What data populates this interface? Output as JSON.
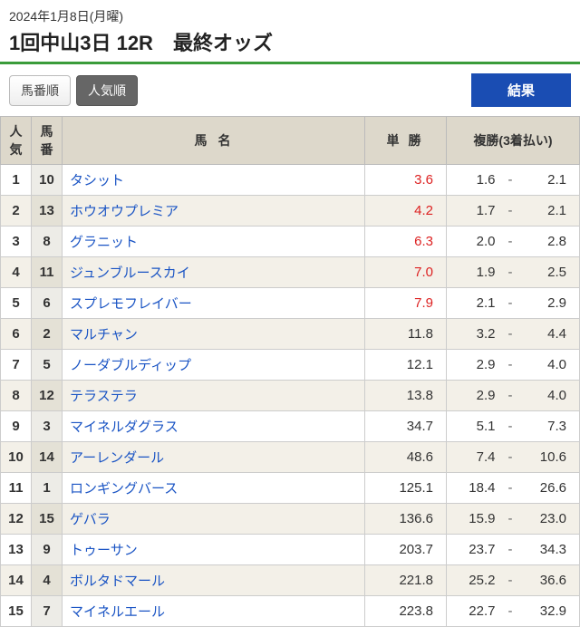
{
  "header": {
    "date": "2024年1月8日(月曜)",
    "title": "1回中山3日 12R　最終オッズ"
  },
  "controls": {
    "tab1": "馬番順",
    "tab2": "人気順",
    "result": "結果"
  },
  "columns": {
    "rank": "人気",
    "num": "馬番",
    "name": "馬名",
    "win": "単勝",
    "place": "複勝(3着払い)"
  },
  "dash": "-",
  "rows": [
    {
      "rank": "1",
      "num": "10",
      "name": "タシット",
      "win": "3.6",
      "win_red": true,
      "pl": "1.6",
      "ph": "2.1"
    },
    {
      "rank": "2",
      "num": "13",
      "name": "ホウオウプレミア",
      "win": "4.2",
      "win_red": true,
      "pl": "1.7",
      "ph": "2.1"
    },
    {
      "rank": "3",
      "num": "8",
      "name": "グラニット",
      "win": "6.3",
      "win_red": true,
      "pl": "2.0",
      "ph": "2.8"
    },
    {
      "rank": "4",
      "num": "11",
      "name": "ジュンブルースカイ",
      "win": "7.0",
      "win_red": true,
      "pl": "1.9",
      "ph": "2.5"
    },
    {
      "rank": "5",
      "num": "6",
      "name": "スプレモフレイバー",
      "win": "7.9",
      "win_red": true,
      "pl": "2.1",
      "ph": "2.9"
    },
    {
      "rank": "6",
      "num": "2",
      "name": "マルチャン",
      "win": "11.8",
      "win_red": false,
      "pl": "3.2",
      "ph": "4.4"
    },
    {
      "rank": "7",
      "num": "5",
      "name": "ノーダブルディップ",
      "win": "12.1",
      "win_red": false,
      "pl": "2.9",
      "ph": "4.0"
    },
    {
      "rank": "8",
      "num": "12",
      "name": "テラステラ",
      "win": "13.8",
      "win_red": false,
      "pl": "2.9",
      "ph": "4.0"
    },
    {
      "rank": "9",
      "num": "3",
      "name": "マイネルダグラス",
      "win": "34.7",
      "win_red": false,
      "pl": "5.1",
      "ph": "7.3"
    },
    {
      "rank": "10",
      "num": "14",
      "name": "アーレンダール",
      "win": "48.6",
      "win_red": false,
      "pl": "7.4",
      "ph": "10.6"
    },
    {
      "rank": "11",
      "num": "1",
      "name": "ロンギングバース",
      "win": "125.1",
      "win_red": false,
      "pl": "18.4",
      "ph": "26.6"
    },
    {
      "rank": "12",
      "num": "15",
      "name": "ゲバラ",
      "win": "136.6",
      "win_red": false,
      "pl": "15.9",
      "ph": "23.0"
    },
    {
      "rank": "13",
      "num": "9",
      "name": "トゥーサン",
      "win": "203.7",
      "win_red": false,
      "pl": "23.7",
      "ph": "34.3"
    },
    {
      "rank": "14",
      "num": "4",
      "name": "ボルタドマール",
      "win": "221.8",
      "win_red": false,
      "pl": "25.2",
      "ph": "36.6"
    },
    {
      "rank": "15",
      "num": "7",
      "name": "マイネルエール",
      "win": "223.8",
      "win_red": false,
      "pl": "22.7",
      "ph": "32.9"
    }
  ]
}
